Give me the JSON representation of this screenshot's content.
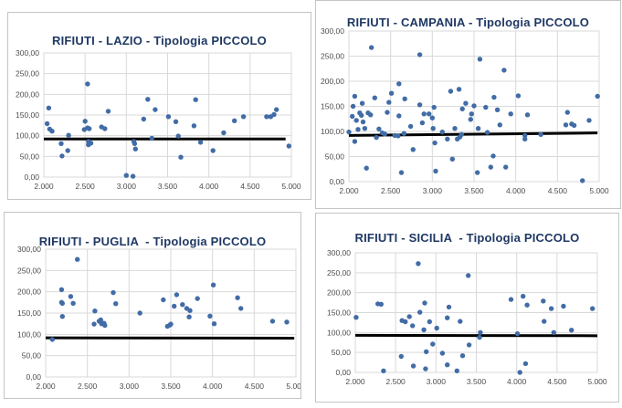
{
  "page": {
    "background_color": "#ffffff",
    "panel_border_color": "#c4c4c4",
    "grid_color": "#d9d9d9",
    "tick_label_color": "#4d4d4d",
    "title_color": "#1F3864"
  },
  "chart_data": [
    {
      "type": "scatter",
      "title": "RIFIUTI - LAZIO - Tipologia PICCOLO",
      "xlabel": "",
      "ylabel": "",
      "xlim": [
        2.0,
        5.0
      ],
      "ylim": [
        0,
        300
      ],
      "x_ticks": [
        "2.000",
        "2.500",
        "3.000",
        "3.500",
        "4.000",
        "4.500",
        "5.000"
      ],
      "y_ticks": [
        "0,00",
        "50,00",
        "100,00",
        "150,00",
        "200,00",
        "250,00",
        "300,00"
      ],
      "grid": true,
      "legend": "none",
      "point_color": "#426CA6",
      "trendline": {
        "color": "#000000",
        "x": [
          2.0,
          4.93
        ],
        "y": [
          92,
          92
        ]
      },
      "points": [
        [
          2.04,
          129
        ],
        [
          2.06,
          167
        ],
        [
          2.07,
          116
        ],
        [
          2.1,
          111
        ],
        [
          2.21,
          81
        ],
        [
          2.22,
          51
        ],
        [
          2.29,
          64
        ],
        [
          2.3,
          101
        ],
        [
          2.49,
          115
        ],
        [
          2.5,
          135
        ],
        [
          2.53,
          225
        ],
        [
          2.53,
          119
        ],
        [
          2.55,
          117
        ],
        [
          2.54,
          86
        ],
        [
          2.54,
          78
        ],
        [
          2.57,
          82
        ],
        [
          2.7,
          121
        ],
        [
          2.74,
          117
        ],
        [
          2.78,
          159
        ],
        [
          3.0,
          4
        ],
        [
          3.08,
          2
        ],
        [
          3.09,
          86
        ],
        [
          3.1,
          81
        ],
        [
          3.11,
          68
        ],
        [
          3.21,
          140
        ],
        [
          3.26,
          188
        ],
        [
          3.31,
          94
        ],
        [
          3.35,
          163
        ],
        [
          3.51,
          146
        ],
        [
          3.6,
          134
        ],
        [
          3.63,
          99
        ],
        [
          3.66,
          48
        ],
        [
          3.82,
          124
        ],
        [
          3.84,
          187
        ],
        [
          3.9,
          84
        ],
        [
          4.05,
          64
        ],
        [
          4.18,
          107
        ],
        [
          4.31,
          136
        ],
        [
          4.42,
          146
        ],
        [
          4.7,
          146
        ],
        [
          4.75,
          146
        ],
        [
          4.79,
          151
        ],
        [
          4.82,
          163
        ],
        [
          4.97,
          75
        ]
      ]
    },
    {
      "type": "scatter",
      "title": "RIFIUTI - CAMPANIA - Tipologia PICCOLO",
      "xlabel": "",
      "ylabel": "",
      "xlim": [
        2.0,
        5.0
      ],
      "ylim": [
        0,
        300
      ],
      "x_ticks": [
        "2.000",
        "2.500",
        "3.000",
        "3.500",
        "4.000",
        "4.500",
        "5.000"
      ],
      "y_ticks": [
        "0,00",
        "50,00",
        "100,00",
        "150,00",
        "200,00",
        "250,00",
        "300,00"
      ],
      "grid": true,
      "legend": "none",
      "point_color": "#426CA6",
      "trendline": {
        "color": "#000000",
        "x": [
          2.0,
          4.98
        ],
        "y": [
          92,
          97
        ]
      },
      "points": [
        [
          2.0,
          99
        ],
        [
          2.04,
          130
        ],
        [
          2.05,
          150
        ],
        [
          2.07,
          170
        ],
        [
          2.07,
          80
        ],
        [
          2.09,
          122
        ],
        [
          2.11,
          104
        ],
        [
          2.13,
          137
        ],
        [
          2.15,
          132
        ],
        [
          2.16,
          156
        ],
        [
          2.17,
          119
        ],
        [
          2.19,
          106
        ],
        [
          2.21,
          27
        ],
        [
          2.23,
          137
        ],
        [
          2.26,
          133
        ],
        [
          2.27,
          267
        ],
        [
          2.31,
          167
        ],
        [
          2.33,
          88
        ],
        [
          2.36,
          105
        ],
        [
          2.4,
          97
        ],
        [
          2.43,
          95
        ],
        [
          2.46,
          138
        ],
        [
          2.48,
          158
        ],
        [
          2.51,
          176
        ],
        [
          2.55,
          92
        ],
        [
          2.59,
          91
        ],
        [
          2.6,
          195
        ],
        [
          2.6,
          131
        ],
        [
          2.63,
          18
        ],
        [
          2.66,
          96
        ],
        [
          2.67,
          165
        ],
        [
          2.74,
          110
        ],
        [
          2.77,
          64
        ],
        [
          2.85,
          253
        ],
        [
          2.85,
          153
        ],
        [
          2.88,
          117
        ],
        [
          2.9,
          135
        ],
        [
          2.96,
          135
        ],
        [
          3.0,
          127
        ],
        [
          3.01,
          106
        ],
        [
          3.02,
          148
        ],
        [
          3.03,
          77
        ],
        [
          3.04,
          21
        ],
        [
          3.12,
          99
        ],
        [
          3.18,
          85
        ],
        [
          3.22,
          180
        ],
        [
          3.24,
          45
        ],
        [
          3.27,
          106
        ],
        [
          3.3,
          85
        ],
        [
          3.32,
          184
        ],
        [
          3.33,
          89
        ],
        [
          3.35,
          94
        ],
        [
          3.36,
          145
        ],
        [
          3.4,
          156
        ],
        [
          3.46,
          124
        ],
        [
          3.47,
          135
        ],
        [
          3.5,
          151
        ],
        [
          3.54,
          18
        ],
        [
          3.55,
          106
        ],
        [
          3.57,
          244
        ],
        [
          3.64,
          148
        ],
        [
          3.66,
          98
        ],
        [
          3.7,
          29
        ],
        [
          3.73,
          51
        ],
        [
          3.74,
          168
        ],
        [
          3.78,
          143
        ],
        [
          3.81,
          113
        ],
        [
          3.86,
          222
        ],
        [
          3.88,
          29
        ],
        [
          3.94,
          135
        ],
        [
          4.03,
          171
        ],
        [
          4.11,
          92
        ],
        [
          4.11,
          85
        ],
        [
          4.14,
          133
        ],
        [
          4.3,
          94
        ],
        [
          4.6,
          113
        ],
        [
          4.62,
          138
        ],
        [
          4.67,
          115
        ],
        [
          4.7,
          112
        ],
        [
          4.8,
          2
        ],
        [
          4.88,
          122
        ],
        [
          4.98,
          170
        ]
      ]
    },
    {
      "type": "scatter",
      "title": "RIFIUTI - PUGLIA  - Tipologia PICCOLO",
      "xlabel": "",
      "ylabel": "",
      "xlim": [
        2.0,
        5.0
      ],
      "ylim": [
        0,
        300
      ],
      "x_ticks": [
        "2.000",
        "2.500",
        "3.000",
        "3.500",
        "4.000",
        "4.500",
        "5.000"
      ],
      "y_ticks": [
        "0,00",
        "50,00",
        "100,00",
        "150,00",
        "200,00",
        "250,00",
        "300,00"
      ],
      "grid": true,
      "legend": "none",
      "point_color": "#426CA6",
      "trendline": {
        "color": "#000000",
        "x": [
          2.0,
          4.98
        ],
        "y": [
          92,
          91
        ]
      },
      "points": [
        [
          2.08,
          88
        ],
        [
          2.19,
          205
        ],
        [
          2.19,
          175
        ],
        [
          2.2,
          173
        ],
        [
          2.2,
          142
        ],
        [
          2.3,
          189
        ],
        [
          2.33,
          173
        ],
        [
          2.38,
          276
        ],
        [
          2.58,
          124
        ],
        [
          2.59,
          155
        ],
        [
          2.64,
          131
        ],
        [
          2.66,
          134
        ],
        [
          2.67,
          125
        ],
        [
          2.7,
          126
        ],
        [
          2.71,
          121
        ],
        [
          2.81,
          198
        ],
        [
          2.84,
          172
        ],
        [
          3.13,
          150
        ],
        [
          3.41,
          181
        ],
        [
          3.46,
          119
        ],
        [
          3.49,
          122
        ],
        [
          3.5,
          124
        ],
        [
          3.54,
          166
        ],
        [
          3.57,
          193
        ],
        [
          3.64,
          170
        ],
        [
          3.69,
          161
        ],
        [
          3.72,
          141
        ],
        [
          3.73,
          156
        ],
        [
          3.82,
          184
        ],
        [
          3.97,
          143
        ],
        [
          4.01,
          216
        ],
        [
          4.02,
          125
        ],
        [
          4.3,
          186
        ],
        [
          4.34,
          161
        ],
        [
          4.72,
          131
        ],
        [
          4.89,
          129
        ]
      ]
    },
    {
      "type": "scatter",
      "title": "RIFIUTI - SICILIA  - Tipologia PICCOLO",
      "xlabel": "",
      "ylabel": "",
      "xlim": [
        2.0,
        5.0
      ],
      "ylim": [
        0,
        300
      ],
      "x_ticks": [
        "2.000",
        "2.500",
        "3.000",
        "3.500",
        "4.000",
        "4.500",
        "5.000"
      ],
      "y_ticks": [
        "0,00",
        "50,00",
        "100,00",
        "150,00",
        "200,00",
        "250,00",
        "300,00"
      ],
      "grid": true,
      "legend": "none",
      "point_color": "#426CA6",
      "trendline": {
        "color": "#000000",
        "x": [
          2.0,
          5.0
        ],
        "y": [
          93,
          92
        ]
      },
      "points": [
        [
          2.01,
          138
        ],
        [
          2.28,
          172
        ],
        [
          2.32,
          171
        ],
        [
          2.35,
          4
        ],
        [
          2.57,
          40
        ],
        [
          2.58,
          130
        ],
        [
          2.62,
          127
        ],
        [
          2.67,
          140
        ],
        [
          2.71,
          117
        ],
        [
          2.72,
          16
        ],
        [
          2.78,
          273
        ],
        [
          2.8,
          151
        ],
        [
          2.86,
          174
        ],
        [
          2.85,
          107
        ],
        [
          2.88,
          52
        ],
        [
          2.87,
          9
        ],
        [
          2.92,
          127
        ],
        [
          2.96,
          71
        ],
        [
          3.01,
          111
        ],
        [
          3.08,
          48
        ],
        [
          3.14,
          137
        ],
        [
          3.16,
          164
        ],
        [
          3.14,
          19
        ],
        [
          3.26,
          4
        ],
        [
          3.3,
          128
        ],
        [
          3.33,
          42
        ],
        [
          3.4,
          243
        ],
        [
          3.41,
          69
        ],
        [
          3.55,
          100
        ],
        [
          3.54,
          88
        ],
        [
          3.93,
          183
        ],
        [
          4.01,
          97
        ],
        [
          4.04,
          0
        ],
        [
          4.08,
          191
        ],
        [
          4.11,
          22
        ],
        [
          4.13,
          169
        ],
        [
          4.33,
          179
        ],
        [
          4.34,
          128
        ],
        [
          4.43,
          160
        ],
        [
          4.46,
          100
        ],
        [
          4.58,
          166
        ],
        [
          4.68,
          106
        ],
        [
          4.94,
          160
        ]
      ]
    }
  ]
}
